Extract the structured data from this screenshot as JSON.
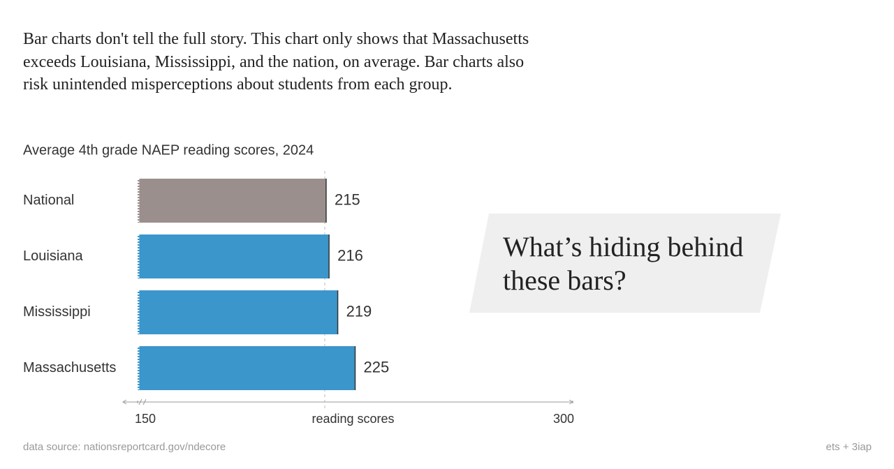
{
  "intro": "Bar charts don't tell the full story. This chart only shows that Massachusetts exceeds Louisiana, Mississippi, and the nation, on average. Bar charts also risk unintended misperceptions about students from each group.",
  "chart_data": {
    "type": "bar",
    "orientation": "horizontal",
    "title": "Average 4th grade NAEP reading scores, 2024",
    "categories": [
      "National",
      "Louisiana",
      "Mississippi",
      "Massachusetts"
    ],
    "values": [
      215,
      216,
      219,
      225
    ],
    "colors": [
      "#9a8f8d",
      "#3a96cb",
      "#3a96cb",
      "#3a96cb"
    ],
    "xlim": [
      150,
      300
    ],
    "xticks": [
      150,
      300
    ],
    "xlabel": "reading scores"
  },
  "callout": "What’s hiding behind these bars?",
  "footer": {
    "source": "data source: nationsreportcard.gov/ndecore",
    "credit": "ets + 3iap"
  }
}
